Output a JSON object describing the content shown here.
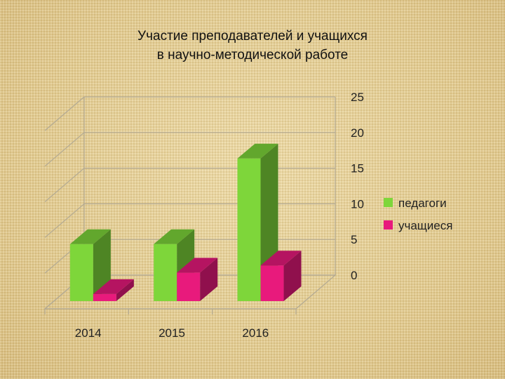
{
  "chart_data": {
    "type": "bar",
    "title_lines": [
      "Участие преподавателей и учащихся",
      "в научно-методической работе"
    ],
    "categories": [
      "2014",
      "2015",
      "2016"
    ],
    "series": [
      {
        "name": "педагоги",
        "values": [
          8,
          8,
          20
        ],
        "color": "#7ed63a"
      },
      {
        "name": "учащиеся",
        "values": [
          1,
          4,
          5
        ],
        "color": "#e81a7c"
      }
    ],
    "ylim": [
      0,
      25
    ],
    "yticks": [
      "0",
      "5",
      "10",
      "15",
      "20",
      "25"
    ],
    "grid": true,
    "legend_position": "right",
    "three_d": true
  }
}
